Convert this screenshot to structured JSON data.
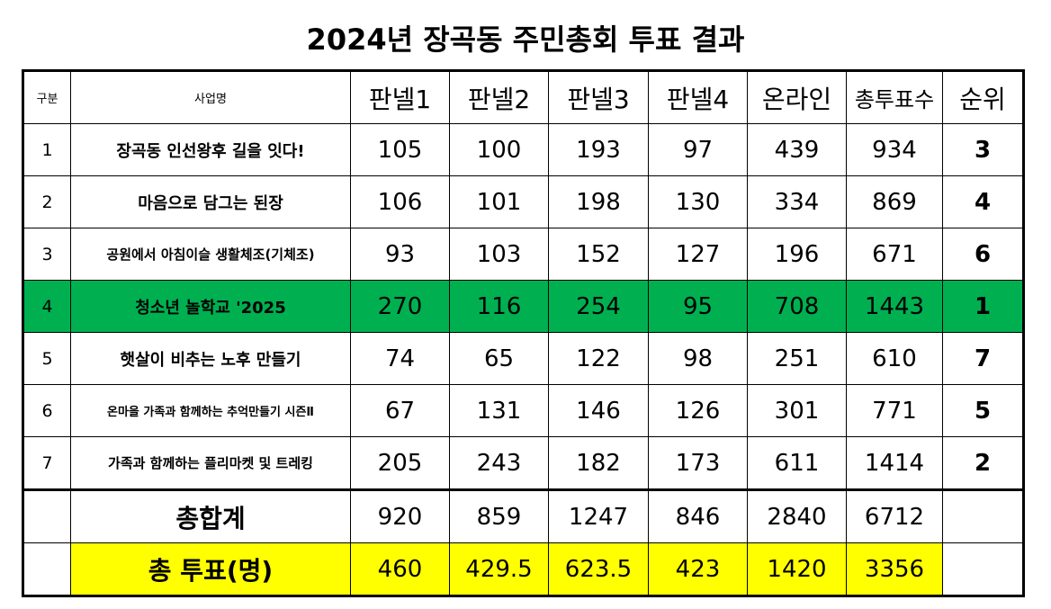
{
  "title": "2024년 장곡동 주민총회 투표 결과",
  "header": {
    "index": "구분",
    "project": "사업명",
    "panel1": "판넬1",
    "panel2": "판넬2",
    "panel3": "판넬3",
    "panel4": "판넬4",
    "online": "온라인",
    "total_votes": "총투표수",
    "rank": "순위"
  },
  "rows": [
    {
      "index": "1",
      "name": "장곡동 인선왕후 길을 잇다!",
      "panel1": "105",
      "panel2": "100",
      "panel3": "193",
      "panel4": "97",
      "online": "439",
      "total": "934",
      "rank": "3"
    },
    {
      "index": "2",
      "name": "마음으로 담그는 된장",
      "panel1": "106",
      "panel2": "101",
      "panel3": "198",
      "panel4": "130",
      "online": "334",
      "total": "869",
      "rank": "4"
    },
    {
      "index": "3",
      "name": "공원에서 아침이슬 생활체조(기체조)",
      "panel1": "93",
      "panel2": "103",
      "panel3": "152",
      "panel4": "127",
      "online": "196",
      "total": "671",
      "rank": "6"
    },
    {
      "index": "4",
      "name": "청소년 놀학교 '2025",
      "panel1": "270",
      "panel2": "116",
      "panel3": "254",
      "panel4": "95",
      "online": "708",
      "total": "1443",
      "rank": "1"
    },
    {
      "index": "5",
      "name": "햇살이 비추는 노후 만들기",
      "panel1": "74",
      "panel2": "65",
      "panel3": "122",
      "panel4": "98",
      "online": "251",
      "total": "610",
      "rank": "7"
    },
    {
      "index": "6",
      "name": "온마을 가족과 함께하는 추억만들기 시즌Ⅱ",
      "panel1": "67",
      "panel2": "131",
      "panel3": "146",
      "panel4": "126",
      "online": "301",
      "total": "771",
      "rank": "5"
    },
    {
      "index": "7",
      "name": "가족과 함께하는 플리마켓 및 트레킹",
      "panel1": "205",
      "panel2": "243",
      "panel3": "182",
      "panel4": "173",
      "online": "611",
      "total": "1414",
      "rank": "2"
    }
  ],
  "sum": {
    "label": "총합계",
    "panel1": "920",
    "panel2": "859",
    "panel3": "1247",
    "panel4": "846",
    "online": "2840",
    "total": "6712"
  },
  "voters": {
    "label": "총 투표(명)",
    "panel1": "460",
    "panel2": "429.5",
    "panel3": "623.5",
    "panel4": "423",
    "online": "1420",
    "total": "3356"
  },
  "colors": {
    "winner_row": "#00b050",
    "voters_row": "#ffff00"
  }
}
